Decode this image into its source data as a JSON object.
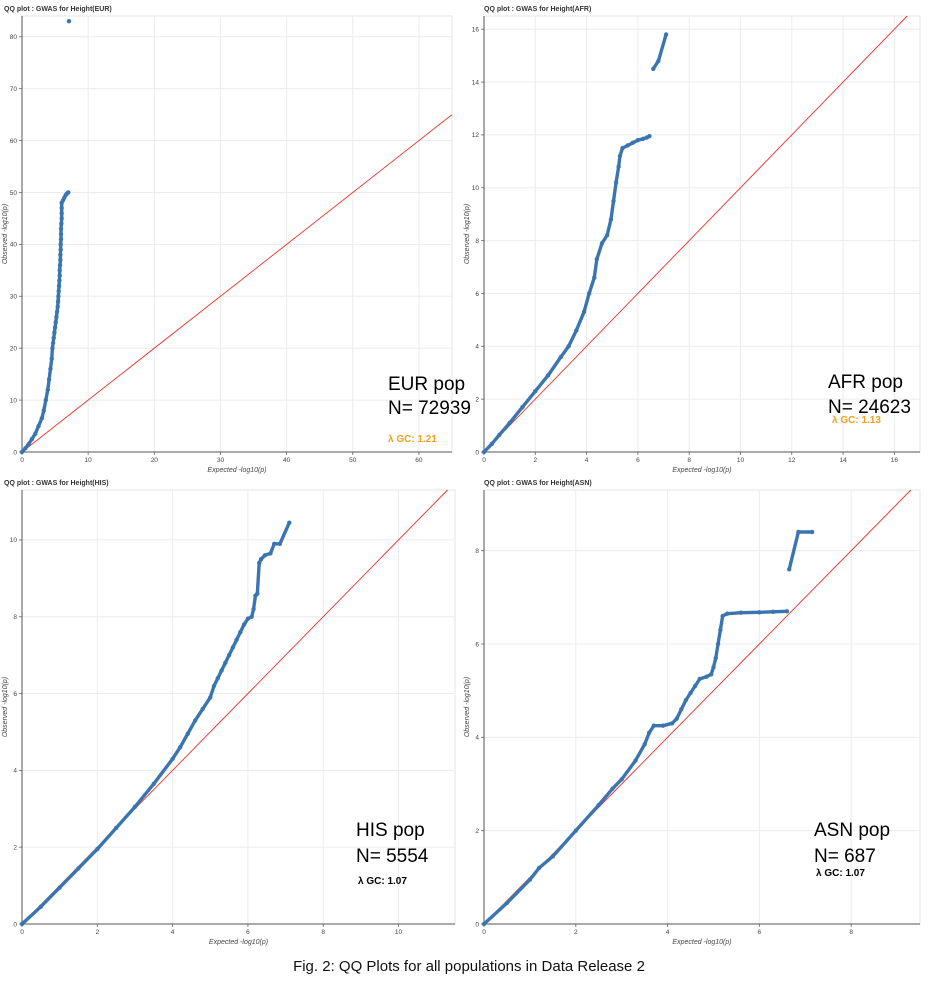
{
  "caption": "Fig. 2: QQ Plots for all populations in Data Release 2",
  "colors": {
    "points": "#3b75af",
    "diagonal": "#e8342c",
    "lambda_orange": "#f0a020",
    "lambda_black": "#000000"
  },
  "chart_data": [
    {
      "type": "scatter",
      "title": "QQ plot : GWAS for Height(EUR)",
      "xlabel": "Expected -log10(p)",
      "ylabel": "Observed -log10(p)",
      "xlim": [
        0,
        65
      ],
      "ylim": [
        0,
        84
      ],
      "xticks": [
        0,
        10,
        20,
        30,
        40,
        50,
        60
      ],
      "yticks": [
        0,
        10,
        20,
        30,
        40,
        50,
        60,
        70,
        80
      ],
      "grid": true,
      "reference_line": "y = x",
      "pop_label": "EUR pop",
      "n_label": "N= 72939",
      "lambda_label": "λ GC: 1.21",
      "lambda_color": "orange",
      "points": [
        [
          0,
          0
        ],
        [
          0.5,
          0.7
        ],
        [
          1,
          1.5
        ],
        [
          1.5,
          2.5
        ],
        [
          2,
          3.5
        ],
        [
          2.5,
          5
        ],
        [
          3,
          6.5
        ],
        [
          3.3,
          8
        ],
        [
          3.6,
          10
        ],
        [
          3.9,
          12
        ],
        [
          4.1,
          14
        ],
        [
          4.3,
          16
        ],
        [
          4.5,
          18
        ],
        [
          4.6,
          20
        ],
        [
          4.7,
          21
        ],
        [
          4.8,
          22
        ],
        [
          4.9,
          23
        ],
        [
          5,
          24
        ],
        [
          5.1,
          25
        ],
        [
          5.2,
          26
        ],
        [
          5.3,
          27
        ],
        [
          5.4,
          28
        ],
        [
          5.45,
          29
        ],
        [
          5.5,
          30
        ],
        [
          5.55,
          31
        ],
        [
          5.6,
          32
        ],
        [
          5.65,
          33
        ],
        [
          5.7,
          34
        ],
        [
          5.7,
          35
        ],
        [
          5.75,
          36
        ],
        [
          5.8,
          37
        ],
        [
          5.8,
          38
        ],
        [
          5.85,
          39
        ],
        [
          5.85,
          40
        ],
        [
          5.9,
          41
        ],
        [
          5.9,
          42
        ],
        [
          5.9,
          43
        ],
        [
          5.95,
          44
        ],
        [
          6,
          45
        ],
        [
          6,
          46
        ],
        [
          6,
          47
        ],
        [
          6,
          48
        ],
        [
          6.2,
          48.5
        ],
        [
          6.4,
          49
        ],
        [
          6.6,
          49.5
        ],
        [
          6.8,
          49.8
        ],
        [
          7,
          50
        ],
        [
          7.1,
          83
        ]
      ]
    },
    {
      "type": "scatter",
      "title": "QQ plot : GWAS for Height(AFR)",
      "xlabel": "Expected -log10(p)",
      "ylabel": "Observed -log10(p)",
      "xlim": [
        0,
        17
      ],
      "ylim": [
        0,
        16.5
      ],
      "xticks": [
        0,
        2,
        4,
        6,
        8,
        10,
        12,
        14,
        16
      ],
      "yticks": [
        0,
        2,
        4,
        6,
        8,
        10,
        12,
        14,
        16
      ],
      "grid": true,
      "reference_line": "y = x",
      "pop_label": "AFR pop",
      "n_label": "N= 24623",
      "lambda_label": "λ GC: 1.13",
      "lambda_color": "orange",
      "points": [
        [
          0,
          0
        ],
        [
          0.3,
          0.3
        ],
        [
          0.6,
          0.65
        ],
        [
          1,
          1.1
        ],
        [
          1.5,
          1.7
        ],
        [
          2,
          2.3
        ],
        [
          2.5,
          2.9
        ],
        [
          3,
          3.6
        ],
        [
          3.3,
          4
        ],
        [
          3.6,
          4.6
        ],
        [
          3.9,
          5.3
        ],
        [
          4.1,
          6
        ],
        [
          4.3,
          6.6
        ],
        [
          4.4,
          7.3
        ],
        [
          4.6,
          7.9
        ],
        [
          4.8,
          8.2
        ],
        [
          4.95,
          8.8
        ],
        [
          5.05,
          9.5
        ],
        [
          5.15,
          10.2
        ],
        [
          5.25,
          10.8
        ],
        [
          5.3,
          11.2
        ],
        [
          5.4,
          11.5
        ],
        [
          5.6,
          11.6
        ],
        [
          5.8,
          11.7
        ],
        [
          6,
          11.8
        ],
        [
          6.2,
          11.85
        ],
        [
          6.35,
          11.9
        ],
        [
          6.45,
          11.95
        ],
        [
          6.6,
          14.5
        ],
        [
          6.8,
          14.8
        ],
        [
          7.1,
          15.8
        ]
      ]
    },
    {
      "type": "scatter",
      "title": "QQ plot : GWAS for Height(HIS)",
      "xlabel": "Expected -log10(p)",
      "ylabel": "Observed -log10(p)",
      "xlim": [
        0,
        11.5
      ],
      "ylim": [
        0,
        11.3
      ],
      "xticks": [
        0,
        2,
        4,
        6,
        8,
        10
      ],
      "yticks": [
        0,
        2,
        4,
        6,
        8,
        10
      ],
      "grid": true,
      "reference_line": "y = x",
      "pop_label": "HIS pop",
      "n_label": "N= 5554",
      "lambda_label": "λ GC: 1.07",
      "lambda_color": "black",
      "points": [
        [
          0,
          0
        ],
        [
          0.5,
          0.45
        ],
        [
          1,
          0.95
        ],
        [
          1.5,
          1.45
        ],
        [
          2,
          1.95
        ],
        [
          2.5,
          2.5
        ],
        [
          3,
          3.05
        ],
        [
          3.5,
          3.65
        ],
        [
          4,
          4.3
        ],
        [
          4.2,
          4.6
        ],
        [
          4.4,
          4.95
        ],
        [
          4.6,
          5.3
        ],
        [
          4.8,
          5.6
        ],
        [
          5,
          5.9
        ],
        [
          5.1,
          6.2
        ],
        [
          5.2,
          6.4
        ],
        [
          5.3,
          6.6
        ],
        [
          5.4,
          6.8
        ],
        [
          5.5,
          7.0
        ],
        [
          5.6,
          7.2
        ],
        [
          5.7,
          7.4
        ],
        [
          5.8,
          7.6
        ],
        [
          5.9,
          7.8
        ],
        [
          6,
          7.95
        ],
        [
          6.1,
          8.0
        ],
        [
          6.15,
          8.2
        ],
        [
          6.2,
          8.55
        ],
        [
          6.25,
          8.6
        ],
        [
          6.3,
          9.4
        ],
        [
          6.35,
          9.5
        ],
        [
          6.45,
          9.6
        ],
        [
          6.6,
          9.65
        ],
        [
          6.7,
          9.9
        ],
        [
          6.85,
          9.9
        ],
        [
          7.1,
          10.45
        ]
      ]
    },
    {
      "type": "scatter",
      "title": "QQ plot : GWAS for Height(ASN)",
      "xlabel": "Expected -log10(p)",
      "ylabel": "Observed -log10(p)",
      "xlim": [
        0,
        9.5
      ],
      "ylim": [
        0,
        9.3
      ],
      "xticks": [
        0,
        2,
        4,
        6,
        8
      ],
      "yticks": [
        0,
        2,
        4,
        6,
        8
      ],
      "grid": true,
      "reference_line": "y = x",
      "pop_label": "ASN pop",
      "n_label": "N= 687",
      "lambda_label": "λ GC: 1.07",
      "lambda_color": "black",
      "points": [
        [
          0,
          0
        ],
        [
          0.5,
          0.45
        ],
        [
          1,
          0.95
        ],
        [
          1.2,
          1.2
        ],
        [
          1.5,
          1.45
        ],
        [
          2,
          2.0
        ],
        [
          2.5,
          2.55
        ],
        [
          2.8,
          2.9
        ],
        [
          3,
          3.1
        ],
        [
          3.3,
          3.5
        ],
        [
          3.5,
          3.85
        ],
        [
          3.6,
          4.1
        ],
        [
          3.7,
          4.25
        ],
        [
          3.9,
          4.25
        ],
        [
          4.1,
          4.3
        ],
        [
          4.2,
          4.4
        ],
        [
          4.3,
          4.6
        ],
        [
          4.4,
          4.8
        ],
        [
          4.5,
          4.95
        ],
        [
          4.6,
          5.1
        ],
        [
          4.7,
          5.25
        ],
        [
          4.85,
          5.3
        ],
        [
          4.95,
          5.35
        ],
        [
          5.0,
          5.5
        ],
        [
          5.05,
          5.7
        ],
        [
          5.1,
          6.0
        ],
        [
          5.15,
          6.3
        ],
        [
          5.2,
          6.6
        ],
        [
          5.3,
          6.65
        ],
        [
          5.6,
          6.67
        ],
        [
          6.0,
          6.68
        ],
        [
          6.3,
          6.69
        ],
        [
          6.6,
          6.7
        ],
        [
          6.65,
          7.6
        ],
        [
          6.85,
          8.4
        ],
        [
          7.15,
          8.4
        ]
      ]
    }
  ]
}
